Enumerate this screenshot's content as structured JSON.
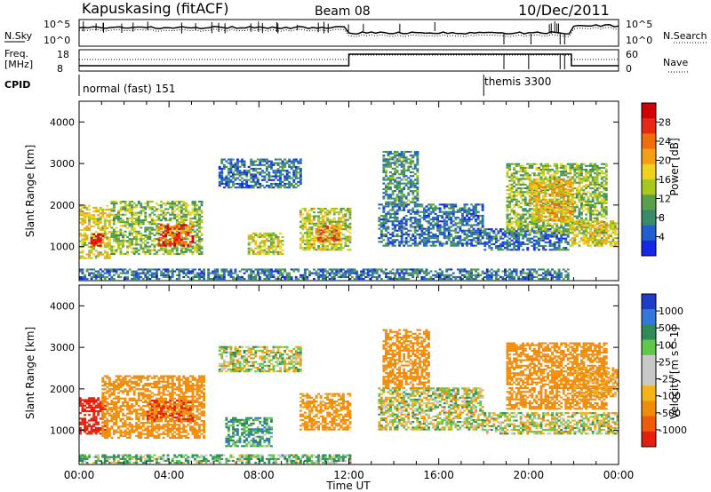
{
  "header": {
    "station": "Kapuskasing (fitACF)",
    "beam": "Beam 08",
    "date": "10/Dec/2011"
  },
  "noise_panel": {
    "left_label": "N.Sky",
    "left_ticks": [
      "10^5",
      "10^0"
    ],
    "right_label": "N.Search",
    "right_ticks": [
      "10^5",
      "10^0"
    ]
  },
  "freq_panel": {
    "left_label_1": "Freq.",
    "left_label_2": "[MHz]",
    "left_ticks": [
      "18",
      "8"
    ],
    "right_label": "Nave",
    "right_ticks": [
      "60",
      "0"
    ]
  },
  "cpid_panel": {
    "label": "CPID",
    "mode_1": "normal (fast) 151",
    "mode_2": "themis 3300"
  },
  "colors": {
    "power_scale": [
      "#1428e6",
      "#1f5fd0",
      "#3a8a6a",
      "#5aa04a",
      "#a8c81e",
      "#f0d21e",
      "#f5a014",
      "#f06e0a",
      "#e62814",
      "#d20000"
    ],
    "velocity_scale": [
      "#1e3cc8",
      "#3278dc",
      "#2f8a5a",
      "#5fc84a",
      "#c8c8c8",
      "#c8c8c8",
      "#f5b414",
      "#f08c0a",
      "#f05a0a",
      "#e61e0a"
    ]
  },
  "chart_data": [
    {
      "type": "heatmap",
      "panel": "power",
      "xlabel": "",
      "ylabel": "Slant Range [km]",
      "xlim": [
        0,
        24
      ],
      "ylim": [
        180,
        4500
      ],
      "y_ticks": [
        1000,
        2000,
        3000,
        4000
      ],
      "colorbar_label": "Power [dB]",
      "colorbar_ticks": [
        "28",
        "24",
        "20",
        "16",
        "12",
        "8",
        "4"
      ],
      "colorbar_range": [
        0,
        30
      ],
      "echo_regions": [
        {
          "t0": 0.0,
          "t1": 1.4,
          "r0": 700,
          "r1": 2000,
          "value": 16
        },
        {
          "t0": 0.5,
          "t1": 1.0,
          "r0": 1000,
          "r1": 1300,
          "value": 28
        },
        {
          "t0": 1.4,
          "t1": 5.4,
          "r0": 800,
          "r1": 2100,
          "value": 12
        },
        {
          "t0": 3.5,
          "t1": 5.0,
          "r0": 1000,
          "r1": 1500,
          "value": 24
        },
        {
          "t0": 6.2,
          "t1": 9.8,
          "r0": 2400,
          "r1": 3100,
          "value": 6
        },
        {
          "t0": 7.5,
          "t1": 9.0,
          "r0": 800,
          "r1": 1300,
          "value": 14
        },
        {
          "t0": 9.8,
          "t1": 12.0,
          "r0": 900,
          "r1": 1900,
          "value": 14
        },
        {
          "t0": 10.5,
          "t1": 11.5,
          "r0": 1100,
          "r1": 1500,
          "value": 22
        },
        {
          "t0": 13.3,
          "t1": 18.0,
          "r0": 1000,
          "r1": 2000,
          "value": 6
        },
        {
          "t0": 13.5,
          "t1": 15.0,
          "r0": 2000,
          "r1": 3300,
          "value": 8
        },
        {
          "t0": 18.0,
          "t1": 21.8,
          "r0": 900,
          "r1": 1400,
          "value": 6
        },
        {
          "t0": 19.0,
          "t1": 23.5,
          "r0": 1300,
          "r1": 3000,
          "value": 12
        },
        {
          "t0": 20.0,
          "t1": 22.0,
          "r0": 1600,
          "r1": 2600,
          "value": 18
        },
        {
          "t0": 21.8,
          "t1": 24.0,
          "r0": 1000,
          "r1": 1600,
          "value": 16
        },
        {
          "t0": 0.0,
          "t1": 21.8,
          "r0": 200,
          "r1": 450,
          "value": 6
        }
      ]
    },
    {
      "type": "heatmap",
      "panel": "velocity",
      "xlabel": "Time UT",
      "ylabel": "Slant Range [km]",
      "xlim": [
        0,
        24
      ],
      "ylim": [
        180,
        4500
      ],
      "x_ticks": [
        "00:00",
        "04:00",
        "08:00",
        "12:00",
        "16:00",
        "20:00",
        "00:00"
      ],
      "y_ticks": [
        1000,
        2000,
        3000,
        4000
      ],
      "colorbar_label": "Velocity [m s^-1]",
      "colorbar_ticks": [
        "1000",
        "500",
        "100",
        "25",
        "-25",
        "-100",
        "-500",
        "-1000"
      ],
      "echo_regions": [
        {
          "t0": 0.0,
          "t1": 1.2,
          "r0": 900,
          "r1": 1800,
          "value": -700
        },
        {
          "t0": 1.0,
          "t1": 5.5,
          "r0": 800,
          "r1": 2300,
          "value": -250
        },
        {
          "t0": 3.0,
          "t1": 5.0,
          "r0": 1200,
          "r1": 1700,
          "value": -500
        },
        {
          "t0": 6.2,
          "t1": 9.8,
          "r0": 2400,
          "r1": 3000,
          "value": 0
        },
        {
          "t0": 6.5,
          "t1": 8.5,
          "r0": 600,
          "r1": 1300,
          "value": 150
        },
        {
          "t0": 9.8,
          "t1": 12.0,
          "r0": 1000,
          "r1": 1900,
          "value": -200
        },
        {
          "t0": 13.3,
          "t1": 18.0,
          "r0": 1000,
          "r1": 2000,
          "value": 0
        },
        {
          "t0": 13.5,
          "t1": 15.5,
          "r0": 2000,
          "r1": 3400,
          "value": -250
        },
        {
          "t0": 18.0,
          "t1": 24.0,
          "r0": 900,
          "r1": 1400,
          "value": 0
        },
        {
          "t0": 19.0,
          "t1": 23.5,
          "r0": 1500,
          "r1": 3100,
          "value": -300
        },
        {
          "t0": 22.0,
          "t1": 24.0,
          "r0": 1800,
          "r1": 2500,
          "value": -150
        },
        {
          "t0": 0.0,
          "t1": 12.0,
          "r0": 200,
          "r1": 400,
          "value": 100
        }
      ]
    }
  ],
  "time_series": {
    "cpid_change_hour": 18.0,
    "noise_break_hours": [
      11.85,
      21.95
    ],
    "freq_step_hour": 12.0,
    "freq_step_hour_2": 21.9
  }
}
